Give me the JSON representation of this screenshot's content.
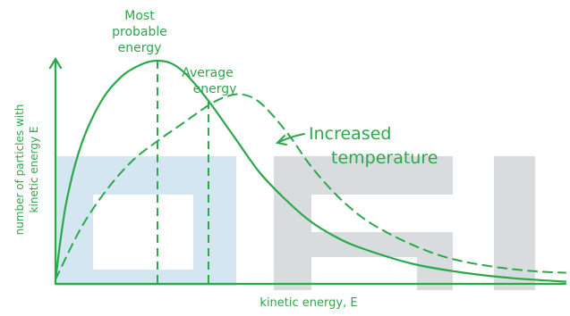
{
  "chart_data": {
    "type": "line",
    "title": "",
    "xlabel": "kinetic energy, E",
    "ylabel": "number of particles with kinetic energy E",
    "xlim": [
      0,
      10
    ],
    "ylim": [
      0,
      10
    ],
    "grid": false,
    "legend": "none",
    "series": [
      {
        "x": [
          0.0,
          0.2,
          0.5,
          0.9,
          1.3,
          1.7,
          2.0,
          2.3,
          2.6,
          3.0,
          3.5,
          4.0,
          4.5,
          5.0,
          5.5,
          6.0,
          7.0,
          8.0,
          9.0,
          10.0
        ],
        "y": [
          0.2,
          3.5,
          6.2,
          8.2,
          9.3,
          9.85,
          10.0,
          9.85,
          9.3,
          8.2,
          6.6,
          5.0,
          3.8,
          2.8,
          2.1,
          1.6,
          0.9,
          0.5,
          0.25,
          0.1
        ],
        "style": "solid"
      },
      {
        "x": [
          0.0,
          0.5,
          1.0,
          1.5,
          2.0,
          2.5,
          3.0,
          3.3,
          3.6,
          3.9,
          4.2,
          4.6,
          5.0,
          5.5,
          6.0,
          6.5,
          7.0,
          7.5,
          8.0,
          8.5,
          9.0,
          9.5,
          10.0
        ],
        "y": [
          0.2,
          2.5,
          4.2,
          5.5,
          6.4,
          7.2,
          8.0,
          8.35,
          8.5,
          8.3,
          7.7,
          6.6,
          5.3,
          4.0,
          3.0,
          2.3,
          1.75,
          1.3,
          1.0,
          0.8,
          0.65,
          0.55,
          0.5
        ],
        "style": "dashed"
      }
    ],
    "markers": [
      {
        "label": "Most probable energy",
        "x": 2.0,
        "y": 10.0
      },
      {
        "label": "Average energy",
        "x": 3.0,
        "y": 8.2
      }
    ],
    "annotations": [
      {
        "text": "Increased temperature",
        "points_to_x": 5.0,
        "points_to_y": 5.3
      }
    ]
  },
  "labels": {
    "most_probable_line1": "Most",
    "most_probable_line2": "probable",
    "most_probable_line3": "energy",
    "average_line1": "Average",
    "average_line2": "energy",
    "increased_line1": "Increased",
    "increased_line2": "temperature",
    "ylabel_line1": "number of particles with",
    "ylabel_line2": "kinetic energy E"
  },
  "colors": {
    "ink": "#2aa84a",
    "watermark_blue": "#d4e6f2",
    "watermark_gray": "#d8dcde"
  }
}
